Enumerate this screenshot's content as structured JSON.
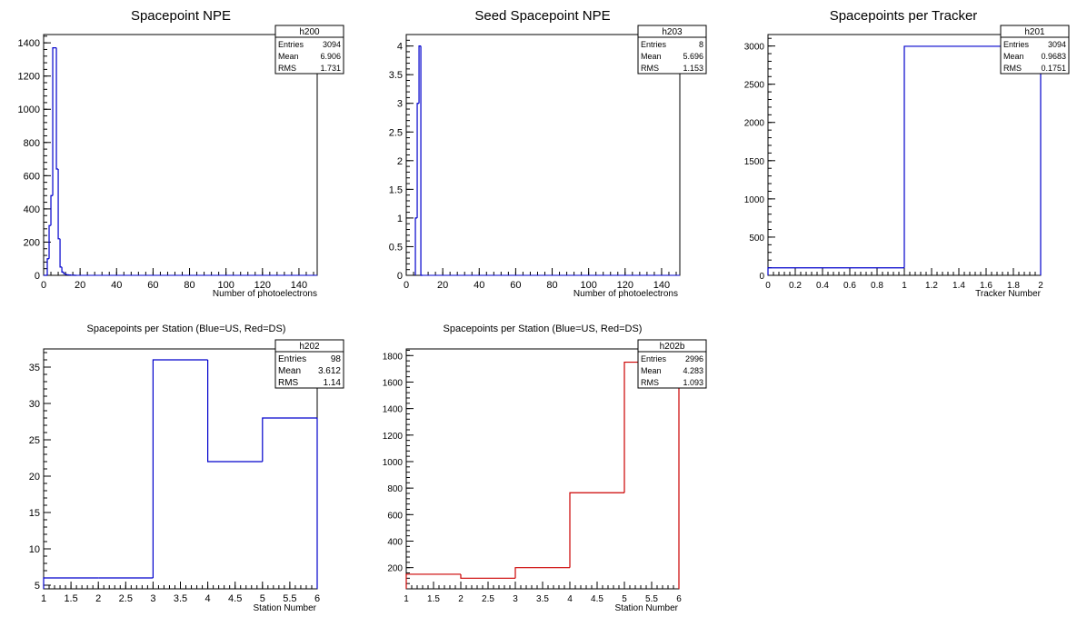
{
  "chart_data": [
    {
      "type": "histogram",
      "title": "Spacepoint NPE",
      "xlabel": "Number of photoelectrons",
      "ylabel": "",
      "xlim": [
        0,
        150
      ],
      "ylim": [
        0,
        1450
      ],
      "xticks": [
        0,
        20,
        40,
        60,
        80,
        100,
        120,
        140
      ],
      "yticks": [
        0,
        200,
        400,
        600,
        800,
        1000,
        1200,
        1400
      ],
      "color": "#0000cc",
      "bin_width": 1,
      "bins": [
        [
          0,
          0
        ],
        [
          1,
          0
        ],
        [
          2,
          100
        ],
        [
          3,
          300
        ],
        [
          4,
          480
        ],
        [
          5,
          1370
        ],
        [
          6,
          1370
        ],
        [
          7,
          640
        ],
        [
          8,
          220
        ],
        [
          9,
          50
        ],
        [
          10,
          20
        ],
        [
          11,
          10
        ],
        [
          12,
          5
        ],
        [
          13,
          3
        ],
        [
          14,
          2
        ],
        [
          15,
          1
        ],
        [
          16,
          1
        ],
        [
          17,
          0
        ]
      ],
      "stats": {
        "name": "h200",
        "rows": [
          {
            "label": "Entries",
            "value": "3094"
          },
          {
            "label": "Mean",
            "value": "6.906"
          },
          {
            "label": "RMS",
            "value": "1.731"
          }
        ]
      }
    },
    {
      "type": "histogram",
      "title": "Seed Spacepoint NPE",
      "xlabel": "Number of photoelectrons",
      "ylabel": "",
      "xlim": [
        0,
        150
      ],
      "ylim": [
        0,
        4.2
      ],
      "xticks": [
        0,
        20,
        40,
        60,
        80,
        100,
        120,
        140
      ],
      "yticks": [
        0,
        0.5,
        1,
        1.5,
        2,
        2.5,
        3,
        3.5,
        4
      ],
      "color": "#0000cc",
      "bin_width": 1,
      "bins": [
        [
          5,
          1
        ],
        [
          6,
          3
        ],
        [
          7,
          4
        ],
        [
          8,
          0
        ]
      ],
      "stats": {
        "name": "h203",
        "rows": [
          {
            "label": "Entries",
            "value": "8"
          },
          {
            "label": "Mean",
            "value": "5.696"
          },
          {
            "label": "RMS",
            "value": "1.153"
          }
        ]
      }
    },
    {
      "type": "histogram",
      "title": "Spacepoints per Tracker",
      "xlabel": "Tracker Number",
      "ylabel": "",
      "xlim": [
        0,
        2
      ],
      "ylim": [
        0,
        3150
      ],
      "xticks": [
        0,
        0.2,
        0.4,
        0.6,
        0.8,
        1,
        1.2,
        1.4,
        1.6,
        1.8,
        2
      ],
      "yticks": [
        0,
        500,
        1000,
        1500,
        2000,
        2500,
        3000
      ],
      "color": "#0000cc",
      "bin_width": 1,
      "bins": [
        [
          0,
          98
        ],
        [
          1,
          2996
        ]
      ],
      "stats": {
        "name": "h201",
        "rows": [
          {
            "label": "Entries",
            "value": "3094"
          },
          {
            "label": "Mean",
            "value": "0.9683"
          },
          {
            "label": "RMS",
            "value": "0.1751"
          }
        ]
      }
    },
    {
      "type": "histogram",
      "title": "Spacepoints per Station (Blue=US, Red=DS)",
      "xlabel": "Station Number",
      "ylabel": "",
      "xlim": [
        1,
        6
      ],
      "ylim": [
        4.5,
        37.5
      ],
      "xticks": [
        1,
        1.5,
        2,
        2.5,
        3,
        3.5,
        4,
        4.5,
        5,
        5.5,
        6
      ],
      "yticks": [
        5,
        10,
        15,
        20,
        25,
        30,
        35
      ],
      "color": "#0000cc",
      "bin_width": 1,
      "bins": [
        [
          1,
          6
        ],
        [
          2,
          6
        ],
        [
          3,
          36
        ],
        [
          4,
          22
        ],
        [
          5,
          28
        ]
      ],
      "stats": {
        "name": "h202",
        "rows": [
          {
            "label": "Entries",
            "value": "98"
          },
          {
            "label": "Mean",
            "value": "3.612"
          },
          {
            "label": "RMS",
            "value": "1.14"
          }
        ]
      }
    },
    {
      "type": "histogram",
      "title": "Spacepoints per Station (Blue=US, Red=DS)",
      "xlabel": "Station Number",
      "ylabel": "",
      "xlim": [
        1,
        6
      ],
      "ylim": [
        40,
        1850
      ],
      "xticks": [
        1,
        1.5,
        2,
        2.5,
        3,
        3.5,
        4,
        4.5,
        5,
        5.5,
        6
      ],
      "yticks": [
        200,
        400,
        600,
        800,
        1000,
        1200,
        1400,
        1600,
        1800
      ],
      "color": "#cc0000",
      "bin_width": 1,
      "bins": [
        [
          1,
          150
        ],
        [
          2,
          120
        ],
        [
          3,
          200
        ],
        [
          4,
          765
        ],
        [
          5,
          1750
        ]
      ],
      "stats": {
        "name": "h202b",
        "rows": [
          {
            "label": "Entries",
            "value": "2996"
          },
          {
            "label": "Mean",
            "value": "4.283"
          },
          {
            "label": "RMS",
            "value": "1.093"
          }
        ]
      }
    }
  ]
}
